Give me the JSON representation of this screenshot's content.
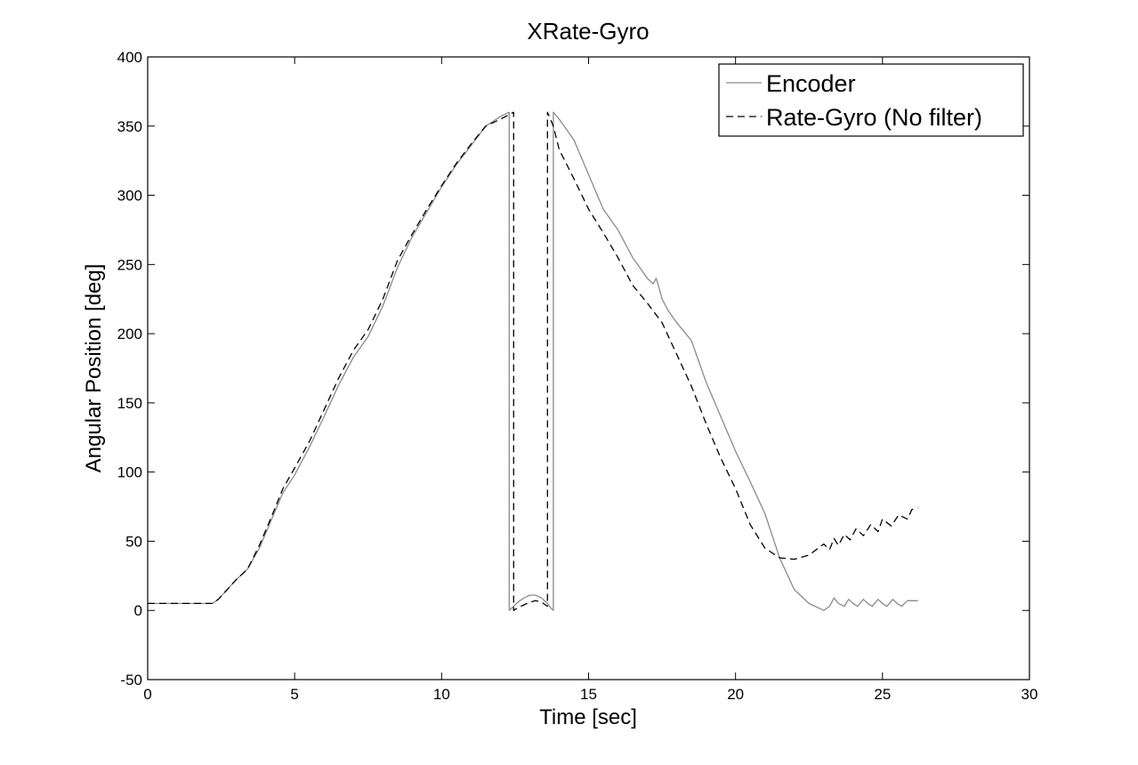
{
  "chart_data": {
    "type": "line",
    "title": "XRate-Gyro",
    "xlabel": "Time [sec]",
    "ylabel": "Angular Position [deg]",
    "xlim": [
      0,
      30
    ],
    "ylim": [
      -50,
      400
    ],
    "xticks": [
      0,
      5,
      10,
      15,
      20,
      25,
      30
    ],
    "yticks": [
      -50,
      0,
      50,
      100,
      150,
      200,
      250,
      300,
      350,
      400
    ],
    "grid": false,
    "legend_position": "top-right",
    "series": [
      {
        "name": "Encoder",
        "style": "solid",
        "color": "#8a8a8a",
        "x": [
          0,
          2.2,
          2.4,
          2.7,
          3.0,
          3.4,
          3.8,
          4.2,
          4.6,
          5.0,
          5.5,
          6.0,
          6.5,
          7.0,
          7.5,
          8.0,
          8.5,
          9.0,
          9.5,
          10.0,
          10.5,
          11.0,
          11.5,
          12.0,
          12.3,
          12.3,
          12.4,
          12.6,
          12.8,
          13.0,
          13.2,
          13.4,
          13.6,
          13.7,
          13.8,
          13.8,
          14.0,
          14.5,
          15.0,
          15.5,
          16.0,
          16.5,
          17.0,
          17.2,
          17.3,
          17.4,
          17.5,
          17.7,
          18.0,
          18.5,
          19.0,
          19.5,
          20.0,
          20.5,
          21.0,
          21.5,
          22.0,
          22.5,
          23.0,
          23.2,
          23.35,
          23.5,
          23.7,
          23.85,
          24.0,
          24.15,
          24.35,
          24.5,
          24.65,
          24.85,
          25.0,
          25.15,
          25.35,
          25.5,
          25.65,
          25.85,
          26.0,
          26.2
        ],
        "y": [
          5,
          5,
          8,
          15,
          22,
          30,
          45,
          65,
          85,
          98,
          118,
          140,
          163,
          183,
          198,
          220,
          248,
          270,
          288,
          306,
          322,
          336,
          350,
          357,
          360,
          0,
          2,
          6,
          9,
          11,
          11,
          9,
          5,
          2,
          0,
          360,
          355,
          340,
          315,
          290,
          275,
          255,
          240,
          236,
          240,
          233,
          225,
          217,
          208,
          195,
          165,
          140,
          115,
          93,
          70,
          38,
          15,
          5,
          0,
          3,
          9,
          5,
          3,
          8,
          5,
          3,
          8,
          5,
          3,
          8,
          5,
          3,
          8,
          5,
          3,
          7,
          7,
          7
        ]
      },
      {
        "name": "Rate-Gyro (No filter)",
        "style": "dashed",
        "color": "#000000",
        "x": [
          0,
          2.2,
          2.4,
          2.7,
          3.0,
          3.4,
          3.8,
          4.2,
          4.6,
          5.0,
          5.5,
          6.0,
          6.5,
          7.0,
          7.5,
          8.0,
          8.5,
          9.0,
          9.5,
          10.0,
          10.5,
          11.0,
          11.5,
          12.0,
          12.45,
          12.45,
          12.6,
          12.8,
          13.0,
          13.2,
          13.4,
          13.6,
          13.6,
          13.8,
          14.0,
          14.5,
          15.0,
          15.5,
          16.0,
          16.5,
          17.0,
          17.5,
          18.0,
          18.5,
          19.0,
          19.5,
          20.0,
          20.5,
          21.0,
          21.5,
          22.0,
          22.5,
          23.0,
          23.2,
          23.35,
          23.5,
          23.7,
          23.9,
          24.1,
          24.35,
          24.6,
          24.85,
          25.0,
          25.3,
          25.55,
          25.85,
          26.0,
          26.2
        ],
        "y": [
          5,
          5,
          8,
          15,
          22,
          30,
          47,
          67,
          88,
          103,
          122,
          145,
          168,
          188,
          203,
          225,
          253,
          272,
          290,
          307,
          323,
          337,
          350,
          355,
          360,
          0,
          2,
          4,
          6,
          7,
          6,
          3,
          360,
          350,
          333,
          312,
          290,
          273,
          255,
          235,
          222,
          208,
          185,
          162,
          135,
          110,
          88,
          62,
          45,
          38,
          37,
          40,
          48,
          44,
          52,
          47,
          55,
          51,
          59,
          54,
          62,
          57,
          66,
          61,
          69,
          66,
          73,
          74
        ]
      }
    ]
  }
}
